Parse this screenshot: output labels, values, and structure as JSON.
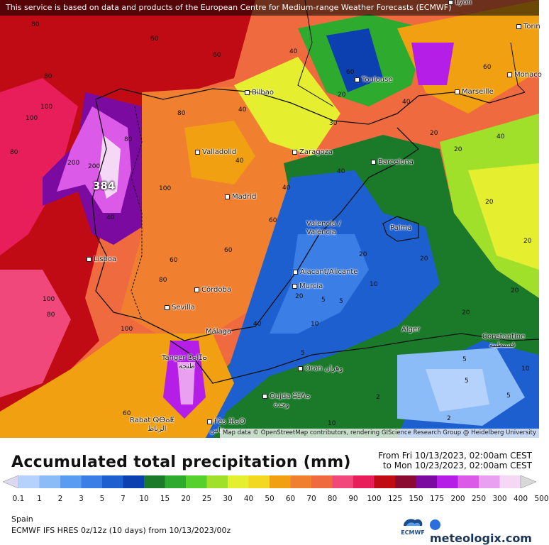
{
  "banner": "This service is based on data and products of the European Centre for Medium-range Weather Forecasts (ECMWF)",
  "attribution": "Map data © OpenStreetMap contributors, rendering GIScience Research Group @ Heidelberg University",
  "max_value_label": "384",
  "cities": [
    {
      "name": "Lyon"
    },
    {
      "name": "Torin"
    },
    {
      "name": "Toulouse"
    },
    {
      "name": "Monaco"
    },
    {
      "name": "Bilbao"
    },
    {
      "name": "Marseille"
    },
    {
      "name": "Valladolid"
    },
    {
      "name": "Zaragoza"
    },
    {
      "name": "Barcelona"
    },
    {
      "name": "Madrid"
    },
    {
      "name": "Valencia /"
    },
    {
      "name": "València"
    },
    {
      "name": "Palma"
    },
    {
      "name": "Lisboa"
    },
    {
      "name": "Alacant/Alicante"
    },
    {
      "name": "Murcia"
    },
    {
      "name": "Córdoba"
    },
    {
      "name": "Sevilla"
    },
    {
      "name": "Málaga"
    },
    {
      "name": "Alger"
    },
    {
      "name": "Constantine"
    },
    {
      "name": "قسنطينة"
    },
    {
      "name": "Tanger ⵟⴰⵏⵊⴰ"
    },
    {
      "name": "طنجة"
    },
    {
      "name": "Oran وهران"
    },
    {
      "name": "Oujda ⵓⵊⴷⴰ"
    },
    {
      "name": "وجدة"
    },
    {
      "name": "Rabat ⵕⴱⴰⵟ"
    },
    {
      "name": "الرباط"
    },
    {
      "name": "Fès ⴼⴰⵙ"
    },
    {
      "name": "فاس"
    }
  ],
  "iso_labels": [
    "80",
    "100",
    "60",
    "80",
    "40",
    "60",
    "80",
    "100",
    "40",
    "80",
    "60",
    "40",
    "20",
    "30",
    "20",
    "60",
    "40",
    "20",
    "80",
    "200",
    "200",
    "100",
    "40",
    "60",
    "20",
    "100",
    "80",
    "60",
    "40",
    "20",
    "5",
    "10",
    "5",
    "20",
    "10",
    "5",
    "2",
    "5",
    "10",
    "20",
    "40",
    "60",
    "80",
    "100",
    "40",
    "20",
    "5",
    "2",
    "10",
    "5",
    "20",
    "40",
    "60",
    "20"
  ],
  "legend": {
    "title": "Accumulated total precipitation (mm)",
    "period_from": "From Fri 10/13/2023, 02:00am CEST",
    "period_to": "to Mon 10/23/2023, 02:00am CEST",
    "region": "Spain",
    "model": "ECMWF IFS HRES 0z/12z (10 days) from  10/13/2023/00z",
    "ecmwf_logo_text": "ECMWF",
    "brand": "meteologix.com",
    "ticks": [
      "0.1",
      "1",
      "2",
      "3",
      "5",
      "7",
      "10",
      "15",
      "20",
      "25",
      "30",
      "40",
      "50",
      "60",
      "70",
      "80",
      "90",
      "100",
      "125",
      "150",
      "175",
      "200",
      "250",
      "300",
      "400",
      "500"
    ],
    "colors": [
      "#dcd8f0",
      "#b4d2fb",
      "#8cbcf8",
      "#5a9cf2",
      "#3a7ee6",
      "#1e5fd0",
      "#0c3fb0",
      "#1a7a2a",
      "#2eaa2e",
      "#55d02c",
      "#a0e02a",
      "#e6ee30",
      "#f2d820",
      "#f0a010",
      "#f08030",
      "#f06a40",
      "#f0487a",
      "#e81e5a",
      "#c00a14",
      "#8a0a30",
      "#7a0aa0",
      "#b41ee6",
      "#dc5ae8",
      "#eaa0f0",
      "#f4d8f6",
      "#d8d8d8"
    ]
  }
}
